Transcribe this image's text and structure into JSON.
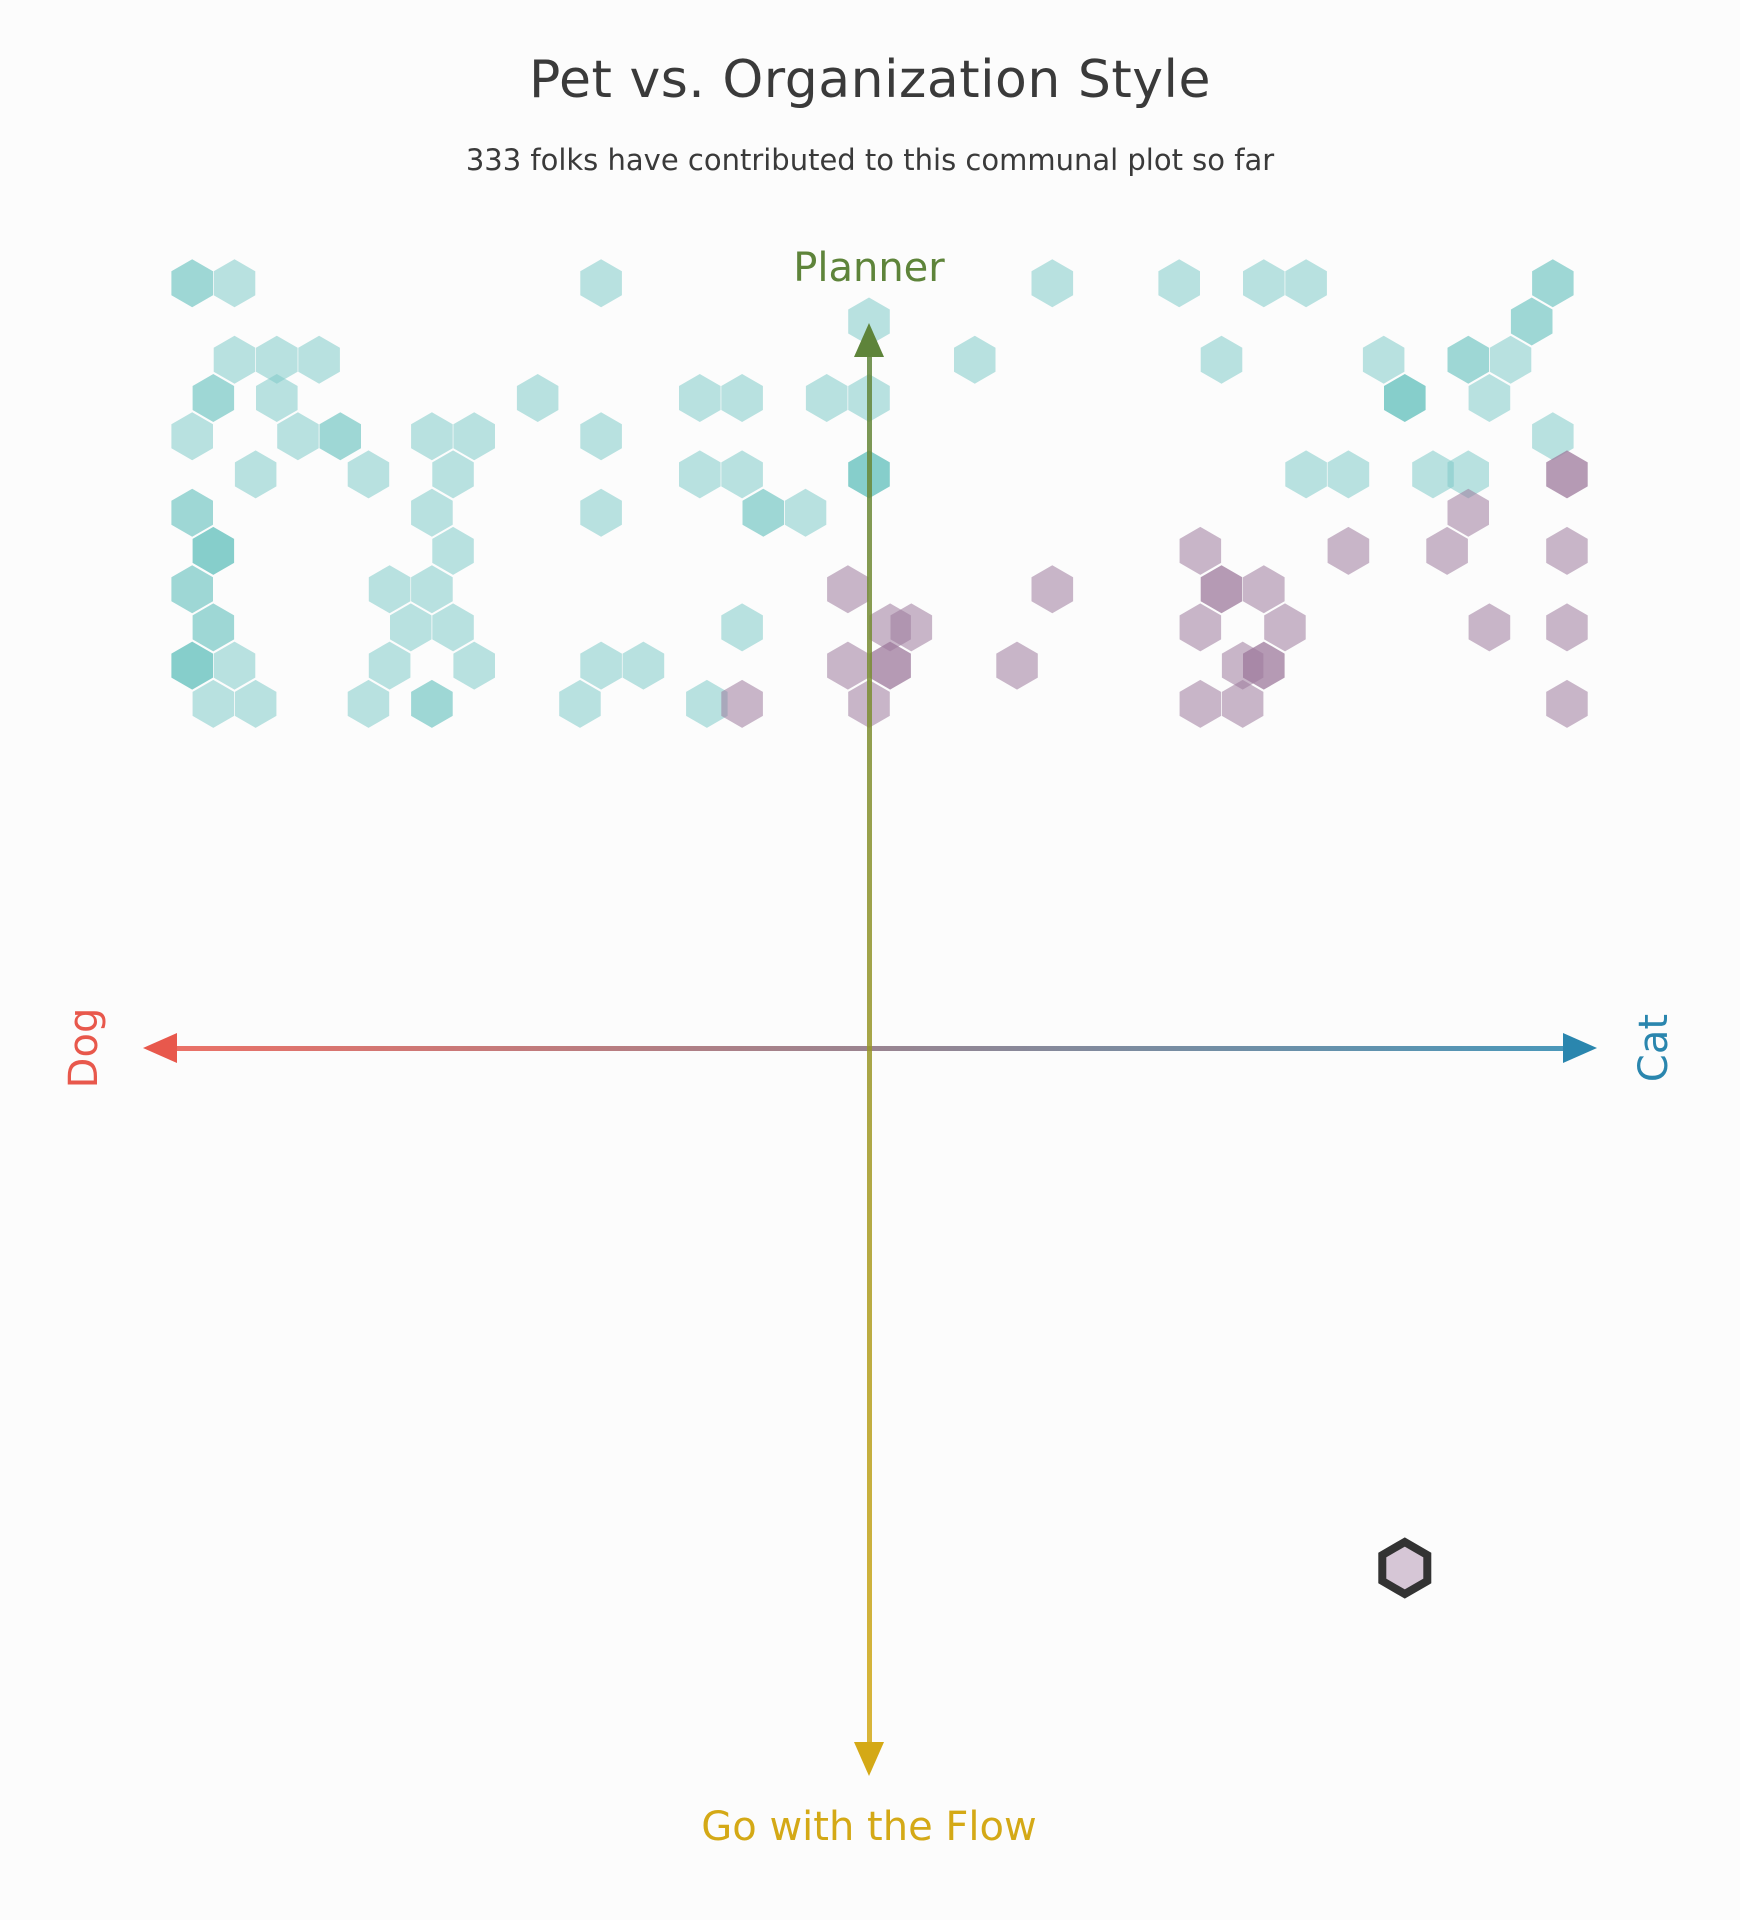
{
  "title": "Pet vs. Organization Style",
  "subtitle": "333 folks have contributed to this communal plot so far",
  "axes": {
    "left": "Dog",
    "right": "Cat",
    "top": "Planner",
    "bottom": "Go with the Flow"
  },
  "colors": {
    "background": "#fcfcfc",
    "dog": "#e8584c",
    "cat": "#2a86ae",
    "planner": "#5e843a",
    "flow": "#d4a916",
    "dog_side_hex": "#7fcbc8",
    "cat_side_hex": "#9d7a9c",
    "highlight_outline": "#333333"
  },
  "chart_data": {
    "type": "hexbin",
    "title": "Pet vs. Organization Style",
    "subtitle": "333 folks have contributed to this communal plot so far",
    "x_axis": {
      "negative": "Dog",
      "positive": "Cat",
      "range": [
        -1,
        1
      ]
    },
    "y_axis": {
      "negative": "Go with the Flow",
      "positive": "Planner",
      "range": [
        -1,
        1
      ]
    },
    "grid": false,
    "total_contributions": 333,
    "hex_cells": [
      {
        "x": -0.96,
        "y": 1.0,
        "count": 2
      },
      {
        "x": -0.9,
        "y": 1.0,
        "count": 1
      },
      {
        "x": -0.38,
        "y": 1.0,
        "count": 1
      },
      {
        "x": 0.26,
        "y": 1.0,
        "count": 1
      },
      {
        "x": 0.44,
        "y": 1.0,
        "count": 1
      },
      {
        "x": 0.56,
        "y": 1.0,
        "count": 1
      },
      {
        "x": 0.62,
        "y": 1.0,
        "count": 1
      },
      {
        "x": 0.97,
        "y": 1.0,
        "count": 2
      },
      {
        "x": 0.0,
        "y": 0.95,
        "count": 1
      },
      {
        "x": 0.94,
        "y": 0.95,
        "count": 2
      },
      {
        "x": -0.9,
        "y": 0.9,
        "count": 1
      },
      {
        "x": -0.84,
        "y": 0.9,
        "count": 1
      },
      {
        "x": -0.78,
        "y": 0.9,
        "count": 1
      },
      {
        "x": 0.15,
        "y": 0.9,
        "count": 1
      },
      {
        "x": 0.5,
        "y": 0.9,
        "count": 1
      },
      {
        "x": 0.73,
        "y": 0.9,
        "count": 1
      },
      {
        "x": 0.85,
        "y": 0.9,
        "count": 2
      },
      {
        "x": 0.91,
        "y": 0.9,
        "count": 1
      },
      {
        "x": -0.93,
        "y": 0.85,
        "count": 2
      },
      {
        "x": -0.84,
        "y": 0.85,
        "count": 1
      },
      {
        "x": -0.47,
        "y": 0.85,
        "count": 1
      },
      {
        "x": -0.24,
        "y": 0.85,
        "count": 1
      },
      {
        "x": -0.18,
        "y": 0.85,
        "count": 1
      },
      {
        "x": -0.06,
        "y": 0.85,
        "count": 1
      },
      {
        "x": 0.0,
        "y": 0.85,
        "count": 1
      },
      {
        "x": 0.76,
        "y": 0.85,
        "count": 3
      },
      {
        "x": 0.88,
        "y": 0.85,
        "count": 1
      },
      {
        "x": -0.96,
        "y": 0.8,
        "count": 1
      },
      {
        "x": -0.81,
        "y": 0.8,
        "count": 1
      },
      {
        "x": -0.75,
        "y": 0.8,
        "count": 2
      },
      {
        "x": -0.62,
        "y": 0.8,
        "count": 1
      },
      {
        "x": -0.56,
        "y": 0.8,
        "count": 1
      },
      {
        "x": -0.38,
        "y": 0.8,
        "count": 1
      },
      {
        "x": 0.97,
        "y": 0.8,
        "count": 1
      },
      {
        "x": -0.87,
        "y": 0.75,
        "count": 1
      },
      {
        "x": -0.71,
        "y": 0.75,
        "count": 1
      },
      {
        "x": -0.59,
        "y": 0.75,
        "count": 1
      },
      {
        "x": -0.24,
        "y": 0.75,
        "count": 1
      },
      {
        "x": -0.18,
        "y": 0.75,
        "count": 1
      },
      {
        "x": 0.0,
        "y": 0.75,
        "count": 3
      },
      {
        "x": 0.62,
        "y": 0.75,
        "count": 1
      },
      {
        "x": 0.68,
        "y": 0.75,
        "count": 1
      },
      {
        "x": 0.8,
        "y": 0.75,
        "count": 1
      },
      {
        "x": 0.85,
        "y": 0.75,
        "count": 1
      },
      {
        "x": 0.99,
        "y": 0.75,
        "count": -2
      },
      {
        "x": -0.96,
        "y": 0.7,
        "count": 2
      },
      {
        "x": -0.62,
        "y": 0.7,
        "count": 1
      },
      {
        "x": -0.38,
        "y": 0.7,
        "count": 1
      },
      {
        "x": -0.15,
        "y": 0.7,
        "count": 2
      },
      {
        "x": -0.09,
        "y": 0.7,
        "count": 1
      },
      {
        "x": 0.85,
        "y": 0.7,
        "count": -1
      },
      {
        "x": -0.93,
        "y": 0.65,
        "count": 3
      },
      {
        "x": -0.59,
        "y": 0.65,
        "count": 1
      },
      {
        "x": 0.47,
        "y": 0.65,
        "count": -1
      },
      {
        "x": 0.68,
        "y": 0.65,
        "count": -1
      },
      {
        "x": 0.82,
        "y": 0.65,
        "count": -1
      },
      {
        "x": 0.99,
        "y": 0.65,
        "count": -1
      },
      {
        "x": -0.96,
        "y": 0.6,
        "count": 2
      },
      {
        "x": -0.68,
        "y": 0.6,
        "count": 1
      },
      {
        "x": -0.62,
        "y": 0.6,
        "count": 1
      },
      {
        "x": -0.03,
        "y": 0.6,
        "count": -1
      },
      {
        "x": 0.26,
        "y": 0.6,
        "count": -1
      },
      {
        "x": 0.5,
        "y": 0.6,
        "count": -2
      },
      {
        "x": 0.56,
        "y": 0.6,
        "count": -1
      },
      {
        "x": -0.93,
        "y": 0.55,
        "count": 2
      },
      {
        "x": -0.65,
        "y": 0.55,
        "count": 1
      },
      {
        "x": -0.59,
        "y": 0.55,
        "count": 1
      },
      {
        "x": -0.18,
        "y": 0.55,
        "count": 1
      },
      {
        "x": 0.03,
        "y": 0.55,
        "count": -1
      },
      {
        "x": 0.06,
        "y": 0.55,
        "count": -1
      },
      {
        "x": 0.47,
        "y": 0.55,
        "count": -1
      },
      {
        "x": 0.59,
        "y": 0.55,
        "count": -1
      },
      {
        "x": 0.88,
        "y": 0.55,
        "count": -1
      },
      {
        "x": 0.99,
        "y": 0.55,
        "count": -1
      },
      {
        "x": -0.96,
        "y": 0.5,
        "count": 3
      },
      {
        "x": -0.9,
        "y": 0.5,
        "count": 1
      },
      {
        "x": -0.68,
        "y": 0.5,
        "count": 1
      },
      {
        "x": -0.56,
        "y": 0.5,
        "count": 1
      },
      {
        "x": -0.38,
        "y": 0.5,
        "count": 1
      },
      {
        "x": -0.32,
        "y": 0.5,
        "count": 1
      },
      {
        "x": -0.03,
        "y": 0.5,
        "count": -1
      },
      {
        "x": 0.03,
        "y": 0.5,
        "count": -2
      },
      {
        "x": 0.21,
        "y": 0.5,
        "count": -1
      },
      {
        "x": 0.53,
        "y": 0.5,
        "count": -1
      },
      {
        "x": 0.56,
        "y": 0.5,
        "count": -2
      },
      {
        "x": -0.93,
        "y": 0.45,
        "count": 1
      },
      {
        "x": -0.87,
        "y": 0.45,
        "count": 1
      },
      {
        "x": -0.71,
        "y": 0.45,
        "count": 1
      },
      {
        "x": -0.62,
        "y": 0.45,
        "count": 2
      },
      {
        "x": -0.41,
        "y": 0.45,
        "count": 1
      },
      {
        "x": -0.23,
        "y": 0.45,
        "count": 1
      },
      {
        "x": -0.18,
        "y": 0.45,
        "count": -1
      },
      {
        "x": 0.0,
        "y": 0.45,
        "count": -1
      },
      {
        "x": 0.47,
        "y": 0.45,
        "count": -1
      },
      {
        "x": 0.53,
        "y": 0.45,
        "count": -1
      },
      {
        "x": 0.99,
        "y": 0.45,
        "count": -1
      }
    ],
    "highlighted_cell": {
      "x": 0.76,
      "y": -0.68
    }
  }
}
